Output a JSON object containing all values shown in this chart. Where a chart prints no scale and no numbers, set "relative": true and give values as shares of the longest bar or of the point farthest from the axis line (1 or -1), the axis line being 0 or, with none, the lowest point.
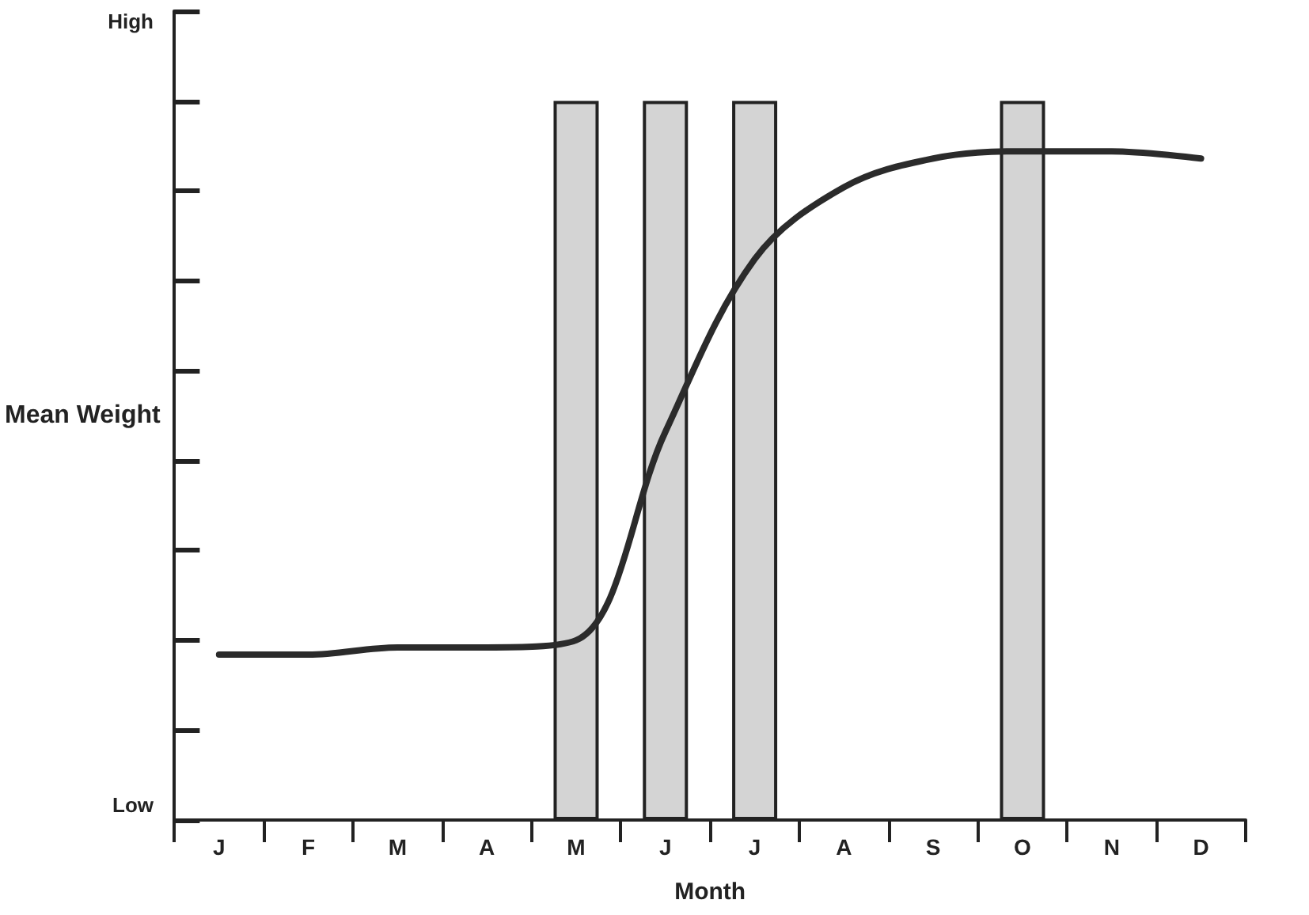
{
  "chart_data": {
    "type": "line",
    "xlabel": "Month",
    "ylabel": "Mean Weight",
    "relative": true,
    "annotations": [
      "Low",
      "High"
    ],
    "categories": [
      "J",
      "F",
      "M",
      "A",
      "M",
      "J",
      "J",
      "A",
      "S",
      "O",
      "N",
      "D"
    ],
    "grid": false,
    "series": [
      {
        "type": "bar",
        "color": "#d4d4d4",
        "values": [
          null,
          null,
          null,
          null,
          1,
          1,
          1,
          null,
          null,
          1,
          null,
          null
        ]
      },
      {
        "color": "#2b2b2b",
        "values": [
          0.23,
          0.23,
          0.24,
          0.24,
          0.25,
          0.54,
          0.78,
          0.88,
          0.92,
          0.93,
          0.93,
          0.92
        ]
      }
    ]
  }
}
